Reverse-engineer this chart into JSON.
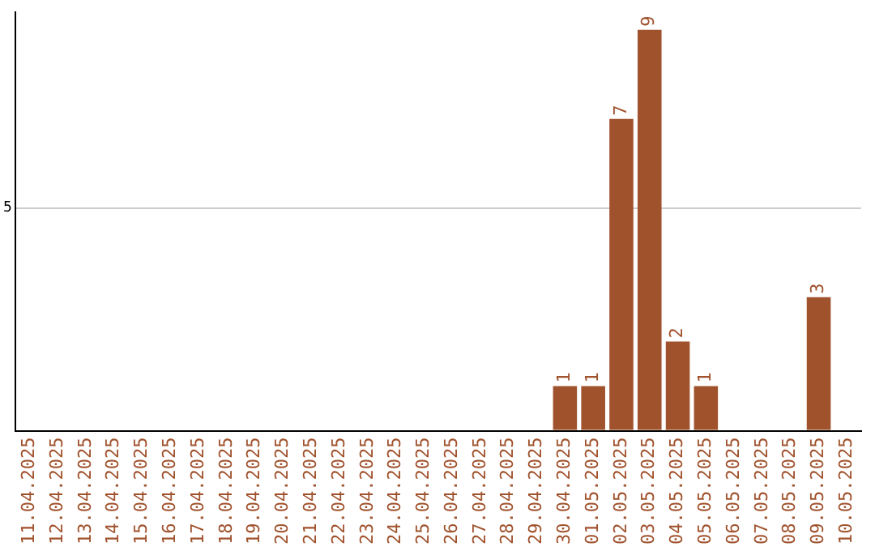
{
  "chart_data": {
    "type": "bar",
    "categories": [
      "11.04.2025",
      "12.04.2025",
      "13.04.2025",
      "14.04.2025",
      "15.04.2025",
      "16.04.2025",
      "17.04.2025",
      "18.04.2025",
      "19.04.2025",
      "20.04.2025",
      "21.04.2025",
      "22.04.2025",
      "23.04.2025",
      "24.04.2025",
      "25.04.2025",
      "26.04.2025",
      "27.04.2025",
      "28.04.2025",
      "29.04.2025",
      "30.04.2025",
      "01.05.2025",
      "02.05.2025",
      "03.05.2025",
      "04.05.2025",
      "05.05.2025",
      "06.05.2025",
      "07.05.2025",
      "08.05.2025",
      "09.05.2025",
      "10.05.2025"
    ],
    "values": [
      null,
      null,
      null,
      null,
      null,
      null,
      null,
      null,
      null,
      null,
      null,
      null,
      null,
      null,
      null,
      null,
      null,
      null,
      null,
      1,
      1,
      7,
      9,
      2,
      1,
      null,
      null,
      null,
      3,
      null
    ],
    "data_labels": true,
    "color": "#a0522d",
    "ylim": [
      0,
      9.4
    ],
    "yticks": [
      {
        "value": 0,
        "label": null
      },
      5
    ],
    "grid": "y"
  }
}
